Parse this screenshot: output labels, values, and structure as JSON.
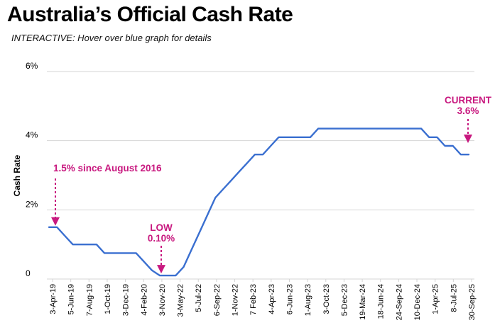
{
  "header": {
    "title": "Australia’s Official Cash Rate",
    "subtitle": "INTERACTIVE: Hover over blue graph for details"
  },
  "colors": {
    "line": "#3a6fd0",
    "annotation": "#c8187f",
    "grid": "#d4d4d4",
    "text": "#000000"
  },
  "chart_data": {
    "type": "line",
    "title": "Australia’s Official Cash Rate",
    "ylabel": "Cash Rate",
    "xlabel": "",
    "ylim": [
      0,
      6
    ],
    "y_ticks": [
      "0",
      "2%",
      "4%",
      "6%"
    ],
    "y_tick_values": [
      0,
      2,
      4,
      6
    ],
    "grid": true,
    "x_tick_labels": [
      "3-Apr-19",
      "5-Jun-19",
      "7-Aug-19",
      "1-Oct-19",
      "3-Dec-19",
      "4-Feb-20",
      "3-Nov-20",
      "3-May-22",
      "5-Jul-22",
      "6-Sep-22",
      "1-Nov-22",
      "7 Feb-23",
      "4-Apr-23",
      "6-Jun-23",
      "1-Aug-23",
      "3-Oct-23",
      "5-Dec-23",
      "19-Mar-24",
      "18-Jun-24",
      "24-Sep-24",
      "10-Dec-24",
      "1-Apr-25",
      "8-Jul-25",
      "30-Sep-25"
    ],
    "series": [
      {
        "values": [
          1.5,
          1.5,
          1.25,
          1.0,
          1.0,
          1.0,
          1.0,
          0.75,
          0.75,
          0.75,
          0.75,
          0.75,
          0.5,
          0.25,
          0.1,
          0.1,
          0.1,
          0.35,
          0.85,
          1.35,
          1.85,
          2.35,
          2.6,
          2.85,
          3.1,
          3.35,
          3.6,
          3.6,
          3.85,
          4.1,
          4.1,
          4.1,
          4.1,
          4.1,
          4.35,
          4.35,
          4.35,
          4.35,
          4.35,
          4.35,
          4.35,
          4.35,
          4.35,
          4.35,
          4.35,
          4.35,
          4.35,
          4.35,
          4.1,
          4.1,
          3.85,
          3.85,
          3.6,
          3.6
        ]
      }
    ],
    "annotations": [
      {
        "text": "1.5% since August 2016",
        "x_index": 0
      },
      {
        "text": "LOW",
        "text2": "0.10%",
        "x_index": 15
      },
      {
        "text": "CURRENT",
        "text2": "3.6%",
        "x_index": 53
      }
    ]
  }
}
